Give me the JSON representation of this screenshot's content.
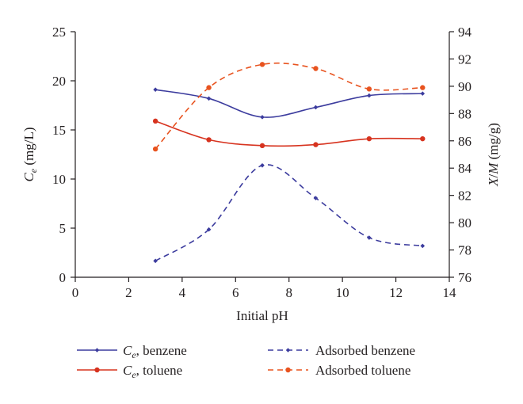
{
  "chart_data": {
    "type": "line",
    "x": [
      3,
      5,
      7,
      9,
      11,
      13
    ],
    "xlabel": "Initial pH",
    "xlim": [
      0,
      14
    ],
    "xticks": [
      "0",
      "2",
      "4",
      "6",
      "8",
      "10",
      "12",
      "14"
    ],
    "y_left": {
      "label_main": "C",
      "label_sub": "e",
      "label_rest": " (mg/L)",
      "ylim": [
        0,
        25
      ],
      "ticks": [
        "0",
        "5",
        "10",
        "15",
        "20",
        "25"
      ]
    },
    "y_right": {
      "label_x": "X",
      "label_slash": "/",
      "label_m": "M",
      "label_rest": " (mg/g)",
      "ylim": [
        76,
        94
      ],
      "ticks": [
        "76",
        "78",
        "80",
        "82",
        "84",
        "86",
        "88",
        "90",
        "92",
        "94"
      ]
    },
    "grid": false,
    "legend_position": "bottom",
    "series": [
      {
        "key": "ce_benzene",
        "legend_main": "C",
        "legend_sub": "e",
        "legend_rest": ", benzene",
        "axis": "left",
        "style": "solid",
        "marker": "diamond",
        "color": "#3c3c9e",
        "values": [
          19.1,
          18.2,
          16.3,
          17.3,
          18.5,
          18.7
        ]
      },
      {
        "key": "ce_toluene",
        "legend_main": "C",
        "legend_sub": "e",
        "legend_rest": ", toluene",
        "axis": "left",
        "style": "solid",
        "marker": "circle",
        "color": "#d7331f",
        "values": [
          15.9,
          14.0,
          13.4,
          13.5,
          14.1,
          14.1
        ]
      },
      {
        "key": "ads_benzene",
        "legend_text": "Adsorbed benzene",
        "axis": "right",
        "style": "dashed",
        "marker": "diamond",
        "color": "#3c3c9e",
        "values": [
          77.2,
          79.5,
          84.2,
          81.8,
          78.9,
          78.3
        ]
      },
      {
        "key": "ads_toluene",
        "legend_text": "Adsorbed toluene",
        "axis": "right",
        "style": "dashed",
        "marker": "circle",
        "color": "#e8531f",
        "values": [
          85.4,
          89.9,
          91.6,
          91.3,
          89.8,
          89.9
        ]
      }
    ]
  }
}
